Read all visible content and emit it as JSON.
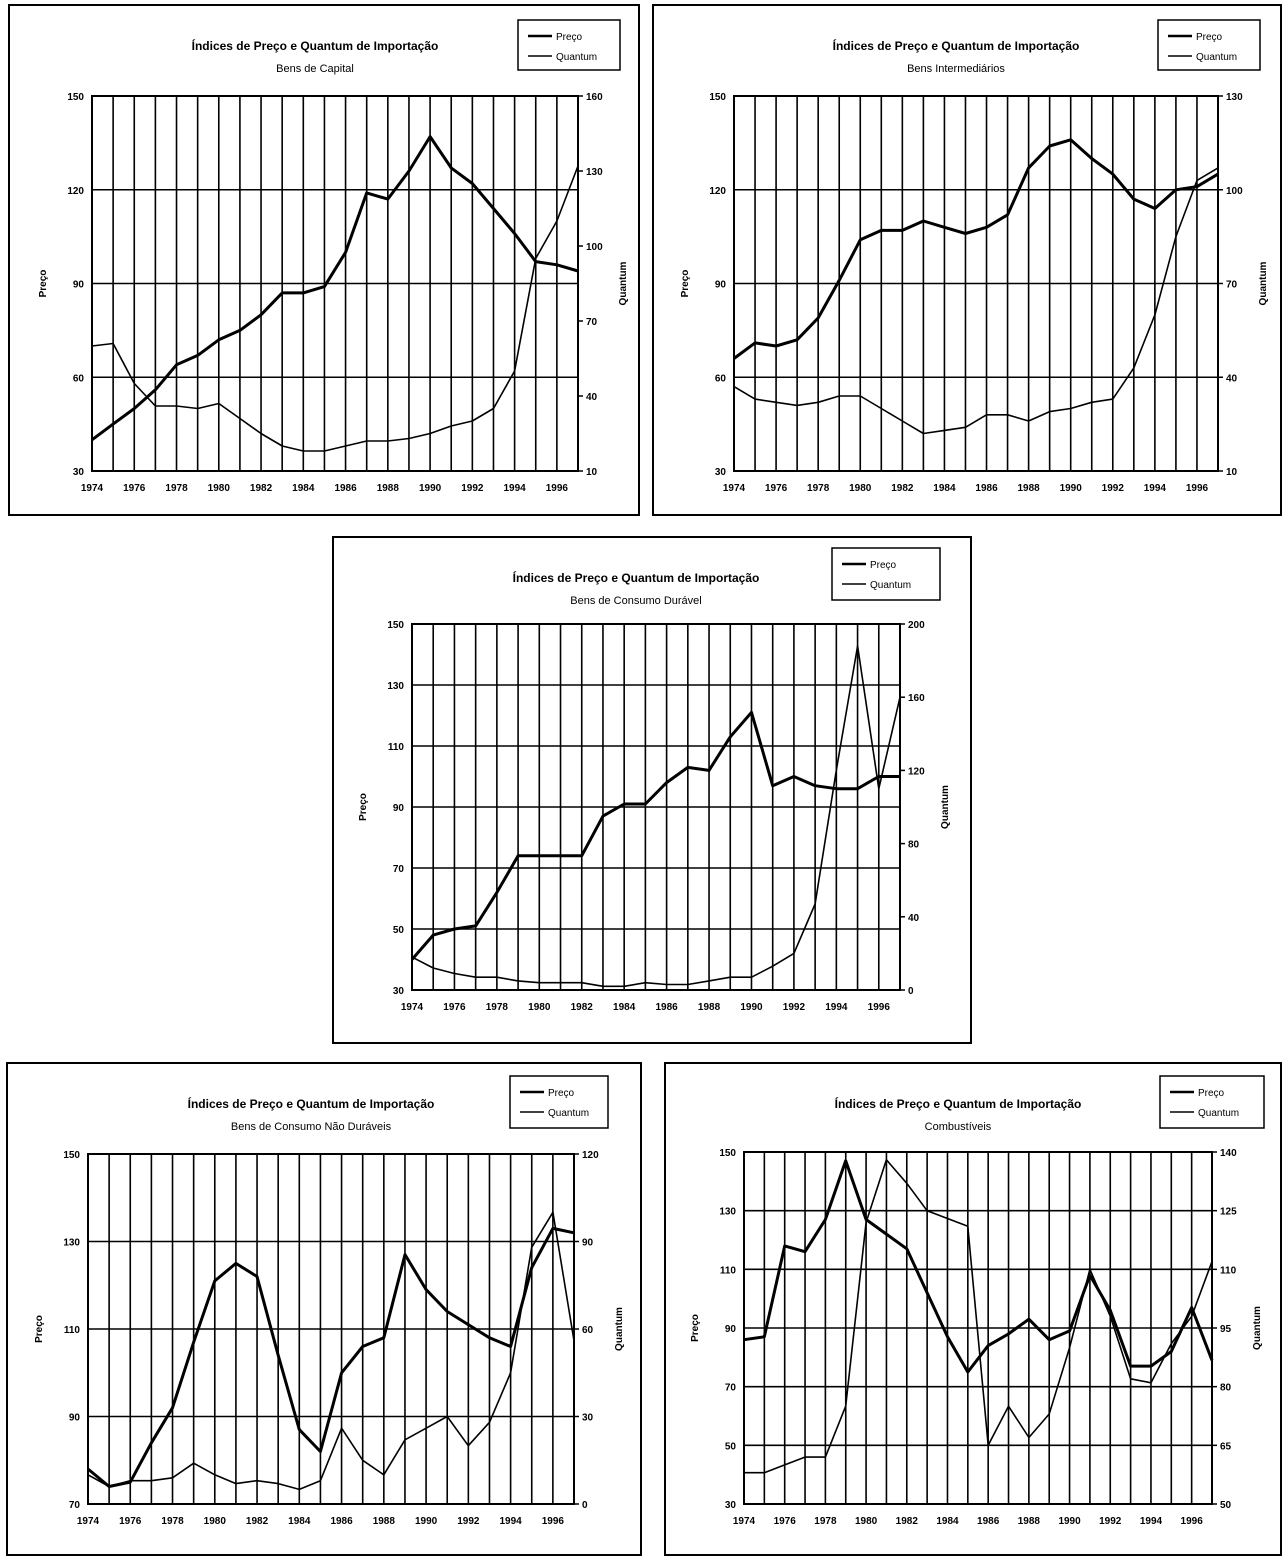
{
  "chart_data": [
    {
      "type": "line",
      "title": "Índices de Preço e Quantum de Importação",
      "subtitle": "Bens de Capital",
      "ylabel": "Preço",
      "y2label": "Quantum",
      "ylim": [
        30,
        150
      ],
      "yticks": [
        "30",
        "60",
        "90",
        "120",
        "150"
      ],
      "y2lim": [
        10,
        160
      ],
      "y2ticks": [
        "10",
        "40",
        "70",
        "100",
        "130",
        "160"
      ],
      "x": [
        1974,
        1975,
        1976,
        1977,
        1978,
        1979,
        1980,
        1981,
        1982,
        1983,
        1984,
        1985,
        1986,
        1987,
        1988,
        1989,
        1990,
        1991,
        1992,
        1993,
        1994,
        1995,
        1996,
        1997
      ],
      "xticks": [
        "1974",
        "1976",
        "1978",
        "1980",
        "1982",
        "1984",
        "1986",
        "1988",
        "1990",
        "1992",
        "1994",
        "1996"
      ],
      "legend": [
        "Preço",
        "Quantum"
      ],
      "series": [
        {
          "name": "Preço",
          "axis": "left",
          "values": [
            40,
            45,
            50,
            56,
            64,
            67,
            72,
            75,
            80,
            87,
            87,
            89,
            100,
            119,
            117,
            126,
            137,
            127,
            122,
            114,
            106,
            97,
            96,
            94
          ]
        },
        {
          "name": "Quantum",
          "axis": "right",
          "values": [
            60,
            61,
            45,
            36,
            36,
            35,
            37,
            31,
            25,
            20,
            18,
            18,
            20,
            22,
            22,
            23,
            25,
            28,
            30,
            35,
            50,
            95,
            110,
            132
          ]
        }
      ]
    },
    {
      "type": "line",
      "title": "Índices de Preço e Quantum de Importação",
      "subtitle": "Bens Intermediários",
      "ylabel": "Preço",
      "y2label": "Quantum",
      "ylim": [
        30,
        150
      ],
      "yticks": [
        "30",
        "60",
        "90",
        "120",
        "150"
      ],
      "y2lim": [
        10,
        130
      ],
      "y2ticks": [
        "10",
        "40",
        "70",
        "100",
        "130"
      ],
      "x": [
        1974,
        1975,
        1976,
        1977,
        1978,
        1979,
        1980,
        1981,
        1982,
        1983,
        1984,
        1985,
        1986,
        1987,
        1988,
        1989,
        1990,
        1991,
        1992,
        1993,
        1994,
        1995,
        1996,
        1997
      ],
      "xticks": [
        "1974",
        "1976",
        "1978",
        "1980",
        "1982",
        "1984",
        "1986",
        "1988",
        "1990",
        "1992",
        "1994",
        "1996"
      ],
      "legend": [
        "Preço",
        "Quantum"
      ],
      "series": [
        {
          "name": "Preço",
          "axis": "left",
          "values": [
            66,
            71,
            70,
            72,
            79,
            91,
            104,
            107,
            107,
            110,
            108,
            106,
            108,
            112,
            127,
            134,
            136,
            130,
            125,
            117,
            114,
            120,
            121,
            125
          ]
        },
        {
          "name": "Quantum",
          "axis": "right",
          "values": [
            37,
            33,
            32,
            31,
            32,
            34,
            34,
            30,
            26,
            22,
            23,
            24,
            28,
            28,
            26,
            29,
            30,
            32,
            33,
            43,
            60,
            85,
            103,
            107
          ]
        }
      ]
    },
    {
      "type": "line",
      "title": "Índices de Preço e Quantum de Importação",
      "subtitle": "Bens de Consumo Durável",
      "ylabel": "Preço",
      "y2label": "Quantum",
      "ylim": [
        30,
        150
      ],
      "yticks": [
        "30",
        "50",
        "70",
        "90",
        "110",
        "130",
        "150"
      ],
      "y2lim": [
        0,
        200
      ],
      "y2ticks": [
        "0",
        "40",
        "80",
        "120",
        "160",
        "200"
      ],
      "x": [
        1974,
        1975,
        1976,
        1977,
        1978,
        1979,
        1980,
        1981,
        1982,
        1983,
        1984,
        1985,
        1986,
        1987,
        1988,
        1989,
        1990,
        1991,
        1992,
        1993,
        1994,
        1995,
        1996,
        1997
      ],
      "xticks": [
        "1974",
        "1976",
        "1978",
        "1980",
        "1982",
        "1984",
        "1986",
        "1988",
        "1990",
        "1992",
        "1994",
        "1996"
      ],
      "legend": [
        "Preço",
        "Quantum"
      ],
      "series": [
        {
          "name": "Preço",
          "axis": "left",
          "values": [
            40,
            48,
            50,
            51,
            62,
            74,
            74,
            74,
            74,
            87,
            91,
            91,
            98,
            103,
            102,
            113,
            121,
            97,
            100,
            97,
            96,
            96,
            100,
            100
          ]
        },
        {
          "name": "Quantum",
          "axis": "right",
          "values": [
            18,
            12,
            9,
            7,
            7,
            5,
            4,
            4,
            4,
            2,
            2,
            4,
            3,
            3,
            5,
            7,
            7,
            13,
            20,
            47,
            120,
            188,
            110,
            160
          ]
        }
      ]
    },
    {
      "type": "line",
      "title": "Índices de Preço e Quantum de Importação",
      "subtitle": "Bens de Consumo Não Duráveis",
      "ylabel": "Preço",
      "y2label": "Quantum",
      "ylim": [
        70,
        150
      ],
      "yticks": [
        "70",
        "90",
        "110",
        "130",
        "150"
      ],
      "y2lim": [
        0,
        120
      ],
      "y2ticks": [
        "0",
        "30",
        "60",
        "90",
        "120"
      ],
      "x": [
        1974,
        1975,
        1976,
        1977,
        1978,
        1979,
        1980,
        1981,
        1982,
        1983,
        1984,
        1985,
        1986,
        1987,
        1988,
        1989,
        1990,
        1991,
        1992,
        1993,
        1994,
        1995,
        1996,
        1997
      ],
      "xticks": [
        "1974",
        "1976",
        "1978",
        "1980",
        "1982",
        "1984",
        "1986",
        "1988",
        "1990",
        "1992",
        "1994",
        "1996"
      ],
      "legend": [
        "Preço",
        "Quantum"
      ],
      "series": [
        {
          "name": "Preço",
          "axis": "left",
          "values": [
            78,
            74,
            75,
            84,
            92,
            107,
            121,
            125,
            122,
            104,
            87,
            82,
            100,
            106,
            108,
            127,
            119,
            114,
            111,
            108,
            106,
            124,
            133,
            132
          ]
        },
        {
          "name": "Quantum",
          "axis": "right",
          "values": [
            10,
            6,
            8,
            8,
            9,
            14,
            10,
            7,
            8,
            7,
            5,
            8,
            26,
            15,
            10,
            22,
            26,
            30,
            20,
            28,
            45,
            88,
            100,
            56
          ]
        }
      ]
    },
    {
      "type": "line",
      "title": "Índices de Preço e Quantum de Importação",
      "subtitle": "Combustíveis",
      "ylabel": "Preço",
      "y2label": "Quantum",
      "ylim": [
        30,
        150
      ],
      "yticks": [
        "30",
        "50",
        "70",
        "90",
        "110",
        "130",
        "150"
      ],
      "y2lim": [
        50,
        140
      ],
      "y2ticks": [
        "50",
        "65",
        "80",
        "95",
        "110",
        "125",
        "140"
      ],
      "x": [
        1974,
        1975,
        1976,
        1977,
        1978,
        1979,
        1980,
        1981,
        1982,
        1983,
        1984,
        1985,
        1986,
        1987,
        1988,
        1989,
        1990,
        1991,
        1992,
        1993,
        1994,
        1995,
        1996,
        1997
      ],
      "xticks": [
        "1974",
        "1976",
        "1978",
        "1980",
        "1982",
        "1984",
        "1986",
        "1988",
        "1990",
        "1992",
        "1994",
        "1996"
      ],
      "legend": [
        "Preço",
        "Quantum"
      ],
      "series": [
        {
          "name": "Preço",
          "axis": "left",
          "values": [
            86,
            87,
            118,
            116,
            127,
            147,
            127,
            122,
            117,
            102,
            87,
            75,
            84,
            88,
            93,
            86,
            89,
            108,
            96,
            77,
            77,
            82,
            97,
            79
          ]
        },
        {
          "name": "Quantum",
          "axis": "right",
          "values": [
            58,
            58,
            60,
            62,
            62,
            75,
            122,
            138,
            132,
            125,
            123,
            121,
            65,
            75,
            67,
            73,
            90,
            110,
            98,
            82,
            81,
            91,
            98,
            112
          ]
        }
      ]
    }
  ]
}
